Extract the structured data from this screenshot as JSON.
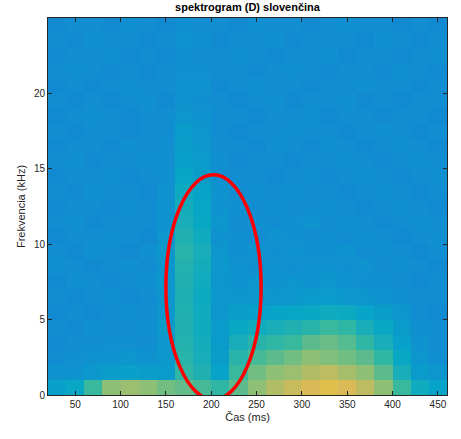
{
  "chart_data": {
    "type": "heatmap",
    "title": "spektrogram (D) slovenčina",
    "x_label": "Čas (ms)",
    "y_label": "Frekvencia (kHz)",
    "xlim": [
      20,
      460
    ],
    "ylim": [
      0,
      25
    ],
    "xticks": [
      50,
      100,
      150,
      200,
      250,
      300,
      350,
      400,
      450
    ],
    "yticks": [
      0,
      5,
      10,
      15,
      20
    ],
    "zlim": [
      0,
      100
    ],
    "x": [
      30,
      50,
      70,
      90,
      110,
      130,
      150,
      170,
      190,
      210,
      230,
      250,
      270,
      290,
      310,
      330,
      350,
      370,
      390,
      410,
      430,
      450
    ],
    "y": [
      0.5,
      1.5,
      2.5,
      3.5,
      4.5,
      5.5,
      6.5,
      7.5,
      8.5,
      9.5,
      10.5,
      11.5,
      12.5,
      13.5,
      14.5,
      15.5,
      16.5,
      17.5,
      18.5,
      19.5,
      20.5,
      21.5,
      22.5,
      23.5,
      24.5
    ],
    "cells": [
      [
        35,
        38,
        50,
        62,
        64,
        62,
        58,
        56,
        52,
        48,
        55,
        62,
        68,
        72,
        75,
        78,
        75,
        70,
        62,
        50,
        40,
        36
      ],
      [
        30,
        30,
        32,
        34,
        35,
        34,
        33,
        48,
        44,
        36,
        50,
        58,
        62,
        64,
        68,
        70,
        66,
        62,
        55,
        42,
        33,
        31
      ],
      [
        28,
        29,
        30,
        30,
        31,
        30,
        32,
        46,
        42,
        34,
        46,
        52,
        55,
        58,
        62,
        60,
        58,
        55,
        48,
        38,
        31,
        29
      ],
      [
        27,
        28,
        28,
        29,
        29,
        28,
        32,
        45,
        41,
        33,
        42,
        46,
        48,
        50,
        55,
        57,
        54,
        48,
        42,
        35,
        30,
        28
      ],
      [
        28,
        27,
        29,
        28,
        28,
        29,
        33,
        44,
        40,
        33,
        38,
        40,
        42,
        44,
        46,
        50,
        48,
        42,
        38,
        33,
        29,
        28
      ],
      [
        27,
        28,
        27,
        28,
        29,
        28,
        32,
        44,
        40,
        32,
        34,
        35,
        36,
        37,
        38,
        40,
        39,
        36,
        34,
        31,
        28,
        27
      ],
      [
        28,
        27,
        28,
        29,
        27,
        28,
        31,
        43,
        39,
        32,
        31,
        32,
        31,
        32,
        33,
        33,
        32,
        31,
        30,
        29,
        28,
        28
      ],
      [
        27,
        29,
        28,
        27,
        28,
        29,
        32,
        44,
        40,
        31,
        30,
        31,
        30,
        31,
        30,
        31,
        30,
        29,
        29,
        28,
        27,
        28
      ],
      [
        29,
        28,
        27,
        28,
        29,
        28,
        31,
        45,
        41,
        32,
        30,
        29,
        30,
        29,
        30,
        30,
        29,
        30,
        28,
        29,
        28,
        27
      ],
      [
        28,
        27,
        29,
        28,
        27,
        29,
        32,
        46,
        42,
        31,
        29,
        30,
        29,
        30,
        29,
        29,
        30,
        28,
        29,
        28,
        27,
        28
      ],
      [
        27,
        28,
        28,
        29,
        28,
        27,
        31,
        44,
        40,
        30,
        29,
        28,
        30,
        29,
        28,
        29,
        28,
        29,
        28,
        27,
        28,
        29
      ],
      [
        28,
        29,
        27,
        28,
        28,
        28,
        30,
        42,
        38,
        31,
        28,
        29,
        28,
        29,
        30,
        28,
        29,
        28,
        27,
        28,
        29,
        28
      ],
      [
        27,
        28,
        28,
        27,
        29,
        28,
        30,
        41,
        37,
        30,
        29,
        28,
        29,
        28,
        28,
        29,
        28,
        27,
        28,
        29,
        28,
        27
      ],
      [
        28,
        27,
        29,
        28,
        28,
        27,
        30,
        39,
        36,
        30,
        28,
        29,
        28,
        29,
        28,
        28,
        27,
        28,
        29,
        28,
        27,
        28
      ],
      [
        27,
        28,
        28,
        29,
        27,
        28,
        29,
        37,
        34,
        29,
        28,
        28,
        27,
        28,
        29,
        27,
        28,
        29,
        28,
        27,
        28,
        29
      ],
      [
        28,
        29,
        27,
        28,
        28,
        29,
        29,
        35,
        33,
        29,
        27,
        28,
        28,
        27,
        28,
        28,
        29,
        28,
        27,
        28,
        29,
        28
      ],
      [
        27,
        28,
        28,
        27,
        29,
        28,
        29,
        34,
        32,
        28,
        28,
        27,
        29,
        28,
        27,
        29,
        28,
        27,
        28,
        29,
        28,
        27
      ],
      [
        28,
        27,
        28,
        28,
        27,
        28,
        28,
        33,
        31,
        28,
        27,
        28,
        28,
        29,
        28,
        28,
        27,
        28,
        29,
        28,
        27,
        28
      ],
      [
        27,
        28,
        29,
        28,
        27,
        28,
        28,
        31,
        30,
        28,
        28,
        27,
        28,
        28,
        29,
        27,
        28,
        28,
        27,
        28,
        28,
        27
      ],
      [
        28,
        27,
        28,
        27,
        28,
        29,
        27,
        30,
        29,
        28,
        27,
        28,
        29,
        27,
        28,
        28,
        29,
        27,
        28,
        27,
        28,
        28
      ],
      [
        27,
        28,
        27,
        28,
        29,
        28,
        28,
        30,
        30,
        27,
        28,
        29,
        28,
        28,
        27,
        28,
        28,
        29,
        28,
        28,
        27,
        28
      ],
      [
        28,
        29,
        28,
        27,
        28,
        27,
        28,
        29,
        29,
        28,
        28,
        27,
        28,
        29,
        28,
        27,
        28,
        28,
        27,
        29,
        28,
        27
      ],
      [
        27,
        28,
        28,
        29,
        27,
        28,
        27,
        29,
        28,
        28,
        29,
        28,
        27,
        28,
        28,
        29,
        27,
        28,
        28,
        27,
        28,
        29
      ],
      [
        28,
        27,
        29,
        28,
        28,
        27,
        28,
        30,
        29,
        27,
        28,
        28,
        29,
        27,
        28,
        28,
        28,
        27,
        29,
        28,
        27,
        28
      ],
      [
        27,
        28,
        28,
        27,
        29,
        28,
        27,
        29,
        28,
        28,
        27,
        29,
        28,
        28,
        27,
        28,
        29,
        28,
        28,
        27,
        28,
        27
      ]
    ],
    "highlight": {
      "shape": "ellipse",
      "x": [
        150,
        255
      ],
      "y": [
        -0.3,
        14.6
      ],
      "color": "#ff0000"
    }
  }
}
